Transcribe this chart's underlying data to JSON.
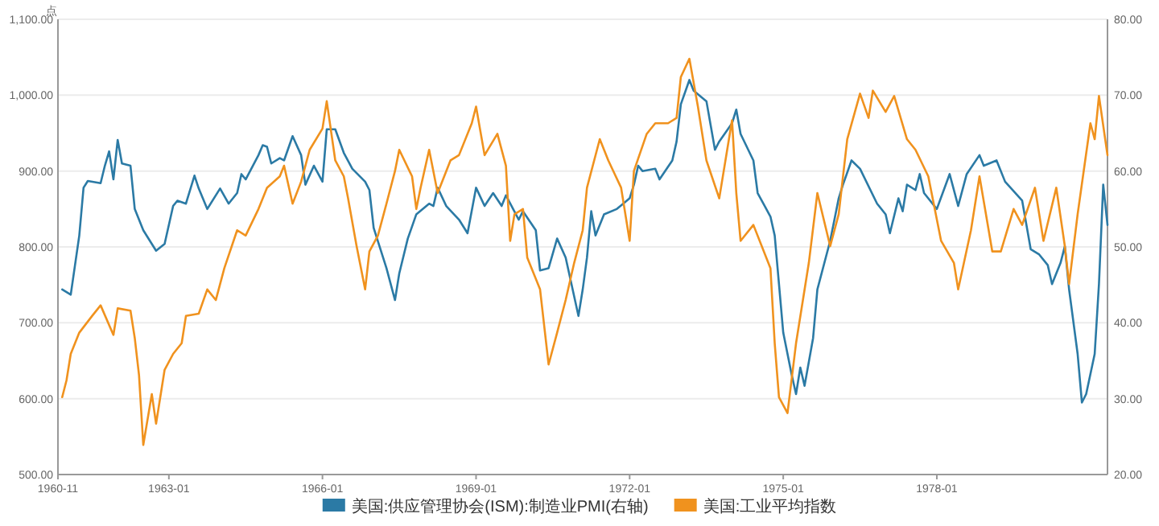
{
  "chart_data": {
    "type": "line",
    "ylabel": "点",
    "grid": "y",
    "legend": "bottom",
    "marker": "none",
    "line_style": "solid",
    "xlim": [
      "1960-11",
      "1981-05"
    ],
    "xticks": [
      "1960-11",
      "1963-01",
      "1966-01",
      "1969-01",
      "1972-01",
      "1975-01",
      "1978-01"
    ],
    "ylim": [
      500,
      1100
    ],
    "yticks": [
      {
        "value": 500,
        "label": "500.00"
      },
      {
        "value": 600,
        "label": "600.00"
      },
      {
        "value": 700,
        "label": "700.00"
      },
      {
        "value": 800,
        "label": "800.00"
      },
      {
        "value": 900,
        "label": "900.00"
      },
      {
        "value": 1000,
        "label": "1,000.00"
      },
      {
        "value": 1100,
        "label": "1,100.00"
      }
    ],
    "y2lim": [
      20,
      80
    ],
    "y2ticks": [
      {
        "value": 20,
        "label": "20.00"
      },
      {
        "value": 30,
        "label": "30.00"
      },
      {
        "value": 40,
        "label": "40.00"
      },
      {
        "value": 50,
        "label": "50.00"
      },
      {
        "value": 60,
        "label": "60.00"
      },
      {
        "value": 70,
        "label": "70.00"
      },
      {
        "value": 80,
        "label": "80.00"
      }
    ],
    "series": [
      {
        "name": "美国:供应管理协会(ISM):制造业PMI(右轴)",
        "color": "#2b7aa5",
        "axis": "y2",
        "x": [
          "1960-12",
          "1961-02",
          "1961-04",
          "1961-05",
          "1961-06",
          "1961-09",
          "1961-10",
          "1961-11",
          "1961-12",
          "1962-01",
          "1962-02",
          "1962-04",
          "1962-05",
          "1962-07",
          "1962-09",
          "1962-10",
          "1962-12",
          "1963-02",
          "1963-03",
          "1963-05",
          "1963-07",
          "1963-08",
          "1963-10",
          "1964-01",
          "1964-03",
          "1964-05",
          "1964-06",
          "1964-07",
          "1964-10",
          "1964-11",
          "1964-12",
          "1965-01",
          "1965-03",
          "1965-04",
          "1965-06",
          "1965-08",
          "1965-09",
          "1965-11",
          "1966-01",
          "1966-02",
          "1966-04",
          "1966-06",
          "1966-08",
          "1966-11",
          "1966-12",
          "1967-01",
          "1967-04",
          "1967-06",
          "1967-07",
          "1967-09",
          "1967-11",
          "1968-02",
          "1968-03",
          "1968-04",
          "1968-06",
          "1968-09",
          "1968-11",
          "1969-01",
          "1969-03",
          "1969-05",
          "1969-07",
          "1969-08",
          "1969-11",
          "1969-12",
          "1970-03",
          "1970-04",
          "1970-06",
          "1970-08",
          "1970-10",
          "1971-01",
          "1971-02",
          "1971-03",
          "1971-04",
          "1971-05",
          "1971-07",
          "1971-10",
          "1972-01",
          "1972-02",
          "1972-03",
          "1972-04",
          "1972-07",
          "1972-08",
          "1972-11",
          "1972-12",
          "1973-01",
          "1973-03",
          "1973-04",
          "1973-07",
          "1973-09",
          "1973-10",
          "1974-01",
          "1974-02",
          "1974-03",
          "1974-06",
          "1974-07",
          "1974-10",
          "1974-11",
          "1974-12",
          "1975-01",
          "1975-03",
          "1975-04",
          "1975-05",
          "1975-06",
          "1975-08",
          "1975-09",
          "1975-12",
          "1976-02",
          "1976-03",
          "1976-05",
          "1976-07",
          "1976-11",
          "1977-01",
          "1977-02",
          "1977-04",
          "1977-05",
          "1977-06",
          "1977-08",
          "1977-09",
          "1977-10",
          "1978-01",
          "1978-04",
          "1978-06",
          "1978-08",
          "1978-11",
          "1978-12",
          "1979-03",
          "1979-05",
          "1979-09",
          "1979-11",
          "1980-01",
          "1980-03",
          "1980-04",
          "1980-06",
          "1980-07",
          "1980-08",
          "1980-10",
          "1980-11",
          "1980-12",
          "1981-02",
          "1981-03",
          "1981-04",
          "1981-05"
        ],
        "values": [
          44.4,
          43.7,
          51.5,
          57.8,
          58.7,
          58.4,
          60.7,
          62.6,
          58.9,
          64.1,
          61.0,
          60.7,
          55.0,
          52.2,
          50.4,
          49.5,
          50.4,
          55.4,
          56.1,
          55.7,
          59.4,
          57.7,
          55.0,
          57.7,
          55.7,
          57.1,
          59.6,
          58.9,
          62.1,
          63.4,
          63.2,
          61.0,
          61.7,
          61.4,
          64.6,
          62.1,
          58.2,
          60.7,
          58.6,
          65.5,
          65.5,
          62.4,
          60.3,
          58.6,
          57.5,
          52.5,
          47.2,
          43.0,
          46.5,
          51.1,
          54.3,
          55.7,
          55.4,
          57.8,
          55.4,
          53.6,
          51.8,
          57.8,
          55.4,
          57.1,
          55.4,
          56.8,
          53.6,
          54.7,
          52.2,
          46.9,
          47.2,
          51.1,
          48.6,
          40.9,
          44.4,
          48.6,
          54.7,
          51.5,
          54.3,
          55.0,
          56.4,
          58.2,
          60.7,
          60.0,
          60.3,
          58.9,
          61.4,
          63.9,
          68.8,
          72.0,
          70.6,
          69.2,
          62.8,
          63.9,
          66.3,
          68.1,
          64.9,
          61.4,
          57.1,
          54.0,
          51.5,
          45.1,
          38.7,
          33.1,
          30.6,
          34.1,
          31.7,
          38.0,
          44.4,
          50.8,
          56.4,
          58.2,
          61.4,
          60.3,
          55.7,
          54.3,
          51.8,
          56.4,
          54.7,
          58.2,
          57.5,
          59.6,
          57.1,
          55.0,
          59.6,
          55.4,
          59.6,
          62.1,
          60.7,
          61.4,
          58.6,
          56.1,
          49.7,
          49.0,
          47.6,
          45.1,
          47.9,
          50.1,
          44.4,
          35.9,
          29.5,
          30.6,
          35.9,
          45.1,
          58.2,
          52.9
        ]
      },
      {
        "name": "美国:工业平均指数",
        "color": "#f0921e",
        "x": [
          "1960-12",
          "1961-01",
          "1961-02",
          "1961-04",
          "1961-07",
          "1961-09",
          "1961-12",
          "1962-01",
          "1962-04",
          "1962-05",
          "1962-06",
          "1962-07",
          "1962-09",
          "1962-10",
          "1962-12",
          "1963-02",
          "1963-04",
          "1963-05",
          "1963-08",
          "1963-10",
          "1963-12",
          "1964-02",
          "1964-05",
          "1964-07",
          "1964-10",
          "1964-12",
          "1965-03",
          "1965-04",
          "1965-06",
          "1965-08",
          "1965-10",
          "1966-01",
          "1966-02",
          "1966-04",
          "1966-06",
          "1966-07",
          "1966-09",
          "1966-11",
          "1966-12",
          "1967-02",
          "1967-04",
          "1967-06",
          "1967-07",
          "1967-10",
          "1967-11",
          "1967-12",
          "1968-02",
          "1968-04",
          "1968-07",
          "1968-09",
          "1968-12",
          "1969-01",
          "1969-03",
          "1969-06",
          "1969-08",
          "1969-09",
          "1969-10",
          "1969-12",
          "1970-01",
          "1970-04",
          "1970-06",
          "1970-08",
          "1970-10",
          "1970-12",
          "1971-02",
          "1971-03",
          "1971-06",
          "1971-08",
          "1971-11",
          "1972-01",
          "1972-02",
          "1972-05",
          "1972-07",
          "1972-10",
          "1972-12",
          "1973-01",
          "1973-03",
          "1973-05",
          "1973-07",
          "1973-10",
          "1974-01",
          "1974-02",
          "1974-03",
          "1974-06",
          "1974-10",
          "1974-11",
          "1974-12",
          "1975-02",
          "1975-04",
          "1975-07",
          "1975-09",
          "1975-12",
          "1976-02",
          "1976-04",
          "1976-07",
          "1976-09",
          "1976-10",
          "1977-01",
          "1977-03",
          "1977-06",
          "1977-08",
          "1977-11",
          "1978-02",
          "1978-05",
          "1978-06",
          "1978-09",
          "1978-11",
          "1979-02",
          "1979-04",
          "1979-07",
          "1979-09",
          "1979-12",
          "1980-02",
          "1980-05",
          "1980-07",
          "1980-08",
          "1980-10",
          "1981-01",
          "1981-02",
          "1981-03",
          "1981-05"
        ],
        "values": [
          602,
          624,
          659,
          687,
          709,
          723,
          684,
          719,
          716,
          680,
          631,
          539,
          606,
          567,
          638,
          659,
          673,
          709,
          712,
          744,
          730,
          772,
          822,
          815,
          850,
          878,
          893,
          907,
          857,
          886,
          928,
          956,
          992,
          914,
          893,
          864,
          801,
          744,
          794,
          815,
          857,
          900,
          928,
          893,
          850,
          878,
          928,
          871,
          914,
          921,
          963,
          985,
          921,
          949,
          907,
          808,
          843,
          850,
          786,
          744,
          645,
          687,
          730,
          779,
          822,
          878,
          942,
          914,
          878,
          808,
          900,
          949,
          963,
          963,
          970,
          1024,
          1048,
          985,
          914,
          864,
          967,
          871,
          808,
          829,
          772,
          673,
          602,
          581,
          673,
          779,
          871,
          801,
          843,
          942,
          1002,
          970,
          1006,
          978,
          999,
          942,
          928,
          893,
          808,
          779,
          744,
          822,
          893,
          794,
          794,
          850,
          829,
          878,
          808,
          878,
          801,
          751,
          843,
          963,
          942,
          999,
          921
        ]
      }
    ]
  }
}
